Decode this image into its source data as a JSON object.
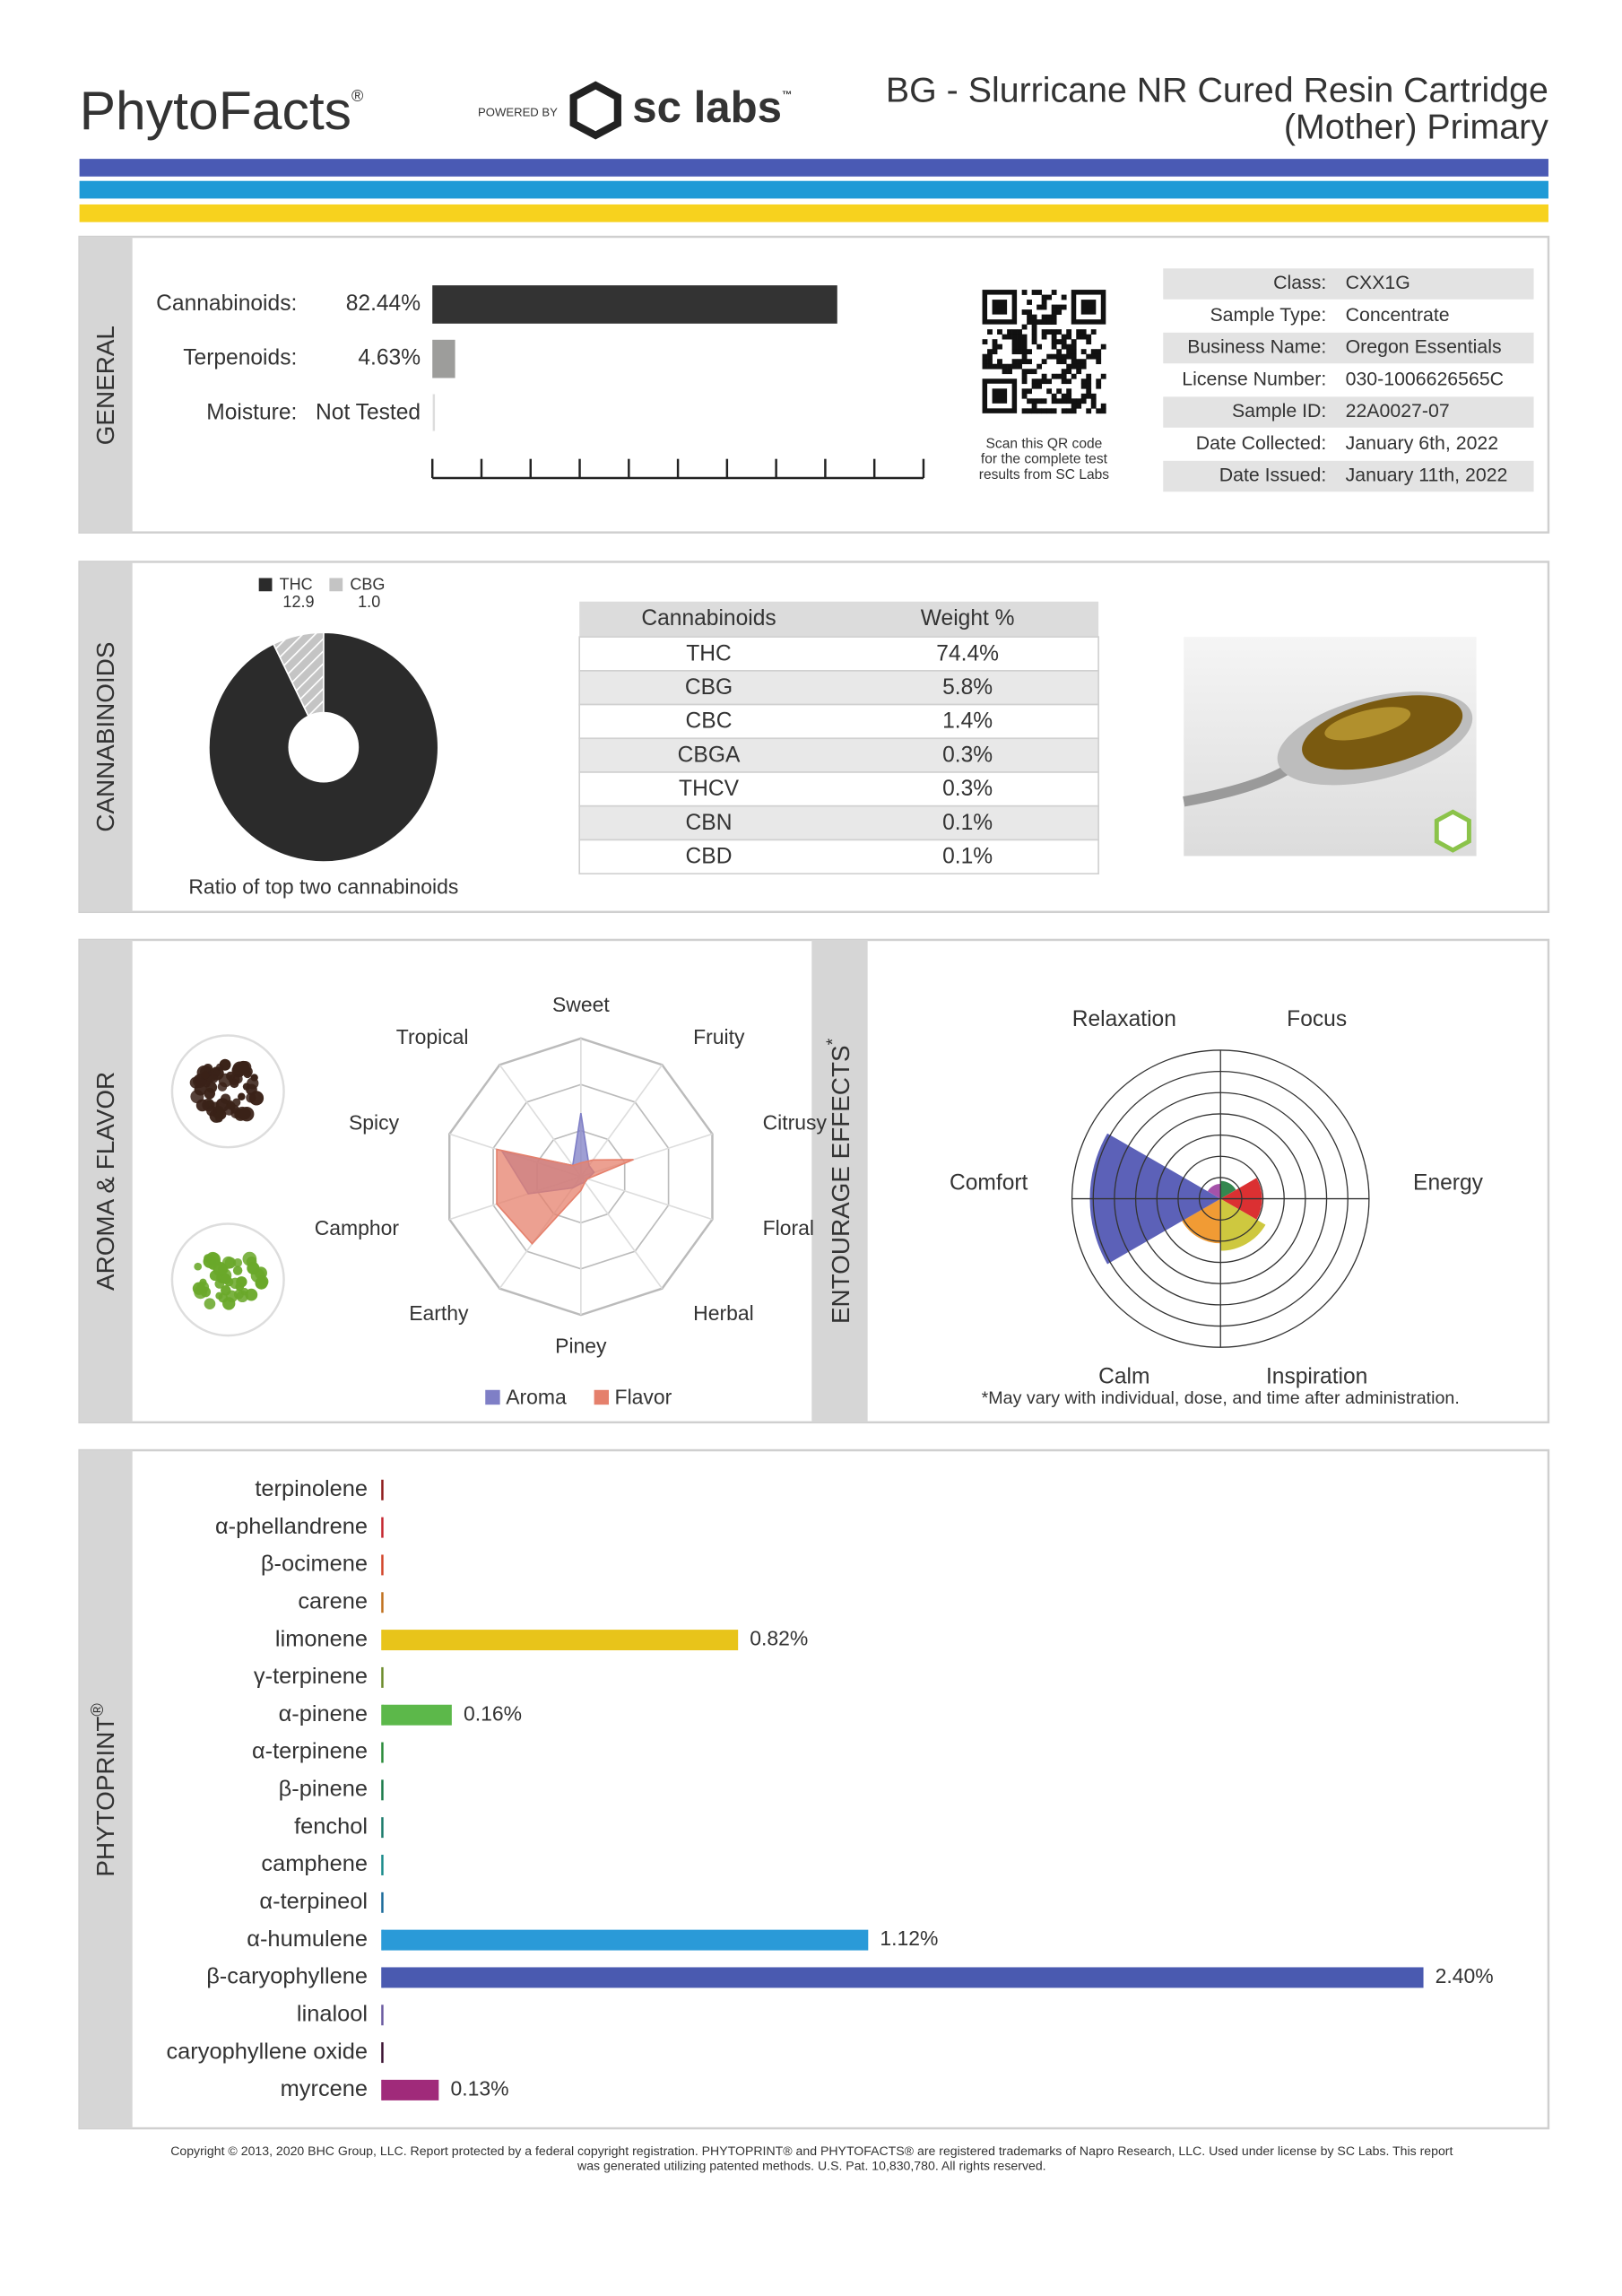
{
  "header": {
    "brand": "PhytoFacts",
    "brand_mark": "®",
    "powered_by": "POWERED BY",
    "lab": "sc labs",
    "lab_mark": "™",
    "title_lines": [
      "BG - Slurricane NR Cured Resin Cartridge",
      "(Mother) Primary"
    ]
  },
  "general": {
    "section_label": "GENERAL",
    "chart": {
      "type": "bar",
      "categories": [
        "Cannabinoids:",
        "Terpenoids:",
        "Moisture:"
      ],
      "values": [
        82.44,
        4.63,
        null
      ],
      "value_labels": [
        "82.44%",
        "4.63%",
        "Not Tested"
      ],
      "colors": [
        "#333333",
        "#9d9d9b",
        null
      ],
      "xlim": [
        0,
        100
      ]
    },
    "qr_caption": [
      "Scan this QR code",
      "for the complete test",
      "results from SC Labs"
    ],
    "info": [
      {
        "label": "Class:",
        "value": "CXX1G"
      },
      {
        "label": "Sample Type:",
        "value": "Concentrate"
      },
      {
        "label": "Business Name:",
        "value": "Oregon Essentials"
      },
      {
        "label": "License Number:",
        "value": "030-1006626565C"
      },
      {
        "label": "Sample ID:",
        "value": "22A0027-07"
      },
      {
        "label": "Date Collected:",
        "value": "January 6th, 2022"
      },
      {
        "label": "Date Issued:",
        "value": "January 11th, 2022"
      }
    ]
  },
  "cannabinoids": {
    "section_label": "CANNABINOIDS",
    "ratio_chart": {
      "type": "pie",
      "categories": [
        "THC",
        "CBG"
      ],
      "values": [
        12.9,
        1.0
      ],
      "value_labels": [
        "12.9",
        "1.0"
      ],
      "colors": [
        "#2b2b2b",
        "#c4c4c4"
      ],
      "caption": "Ratio of top two cannabinoids"
    },
    "table": {
      "header": [
        "Cannabinoids",
        "Weight %"
      ],
      "rows": [
        [
          "THC",
          "74.4%"
        ],
        [
          "CBG",
          "5.8%"
        ],
        [
          "CBC",
          "1.4%"
        ],
        [
          "CBGA",
          "0.3%"
        ],
        [
          "THCV",
          "0.3%"
        ],
        [
          "CBN",
          "0.1%"
        ],
        [
          "CBD",
          "0.1%"
        ]
      ]
    }
  },
  "aroma": {
    "section_label": "AROMA & FLAVOR",
    "chart": {
      "type": "radar",
      "categories": [
        "Sweet",
        "Fruity",
        "Citrusy",
        "Floral",
        "Herbal",
        "Piney",
        "Earthy",
        "Camphor",
        "Spicy",
        "Tropical"
      ],
      "rlim": [
        0,
        10
      ],
      "series": [
        {
          "name": "Aroma",
          "color": "#7f7fc6",
          "values": [
            4.6,
            1,
            1,
            0.5,
            0.5,
            0.5,
            1,
            4,
            6,
            1
          ]
        },
        {
          "name": "Flavor",
          "color": "#e5806c",
          "values": [
            1,
            1.5,
            4,
            0.5,
            0.5,
            1,
            6,
            6.4,
            6.4,
            1
          ]
        }
      ]
    }
  },
  "entourage": {
    "section_label": "ENTOURAGE EFFECTS",
    "section_mark": "*",
    "chart": {
      "type": "polar",
      "categories": [
        "Focus",
        "Energy",
        "Inspiration",
        "Calm",
        "Comfort",
        "Relaxation"
      ],
      "values": [
        1.2,
        2.8,
        3.5,
        3,
        8.8,
        1
      ],
      "colors": [
        "#1e7a3c",
        "#d7191c",
        "#c9c22a",
        "#f0901e",
        "#4a50b0",
        "#9b3fa0"
      ],
      "rlim": [
        0,
        10
      ]
    },
    "note": "*May vary with individual, dose, and time after administration."
  },
  "phytoprint": {
    "section_label": "PHYTOPRINT",
    "section_mark": "®",
    "chart": {
      "type": "bar",
      "categories": [
        "terpinolene",
        "α-phellandrene",
        "β-ocimene",
        "carene",
        "limonene",
        "γ-terpinene",
        "α-pinene",
        "α-terpinene",
        "β-pinene",
        "fenchol",
        "camphene",
        "α-terpineol",
        "α-humulene",
        "β-caryophyllene",
        "linalool",
        "caryophyllene oxide",
        "myrcene"
      ],
      "values": [
        0,
        0,
        0,
        0,
        0.82,
        0,
        0.16,
        0,
        0,
        0,
        0,
        0,
        1.12,
        2.4,
        0,
        0,
        0.13
      ],
      "value_labels": [
        null,
        null,
        null,
        null,
        "0.82%",
        null,
        "0.16%",
        null,
        null,
        null,
        null,
        null,
        "1.12%",
        "2.40%",
        null,
        null,
        "0.13%"
      ],
      "colors": [
        "#8e1b1b",
        "#c4262e",
        "#d2452a",
        "#c0701e",
        "#e8c41a",
        "#6b8a2a",
        "#5cb84a",
        "#2a8a3a",
        "#1a7a4a",
        "#1a7a6a",
        "#1a8a8a",
        "#1a6a9a",
        "#2a9ad8",
        "#4a5ab0",
        "#6a5aa0",
        "#3a1030",
        "#a02a7a"
      ],
      "xlim": [
        0,
        2.6
      ]
    }
  },
  "footer": [
    "Copyright © 2013, 2020 BHC Group, LLC. Report protected by a federal copyright registration. PHYTOPRINT® and PHYTOFACTS® are registered trademarks of Napro Research, LLC. Used under license by SC Labs. This report",
    "was generated utilizing patented methods. U.S. Pat. 10,830,780. All rights reserved."
  ]
}
